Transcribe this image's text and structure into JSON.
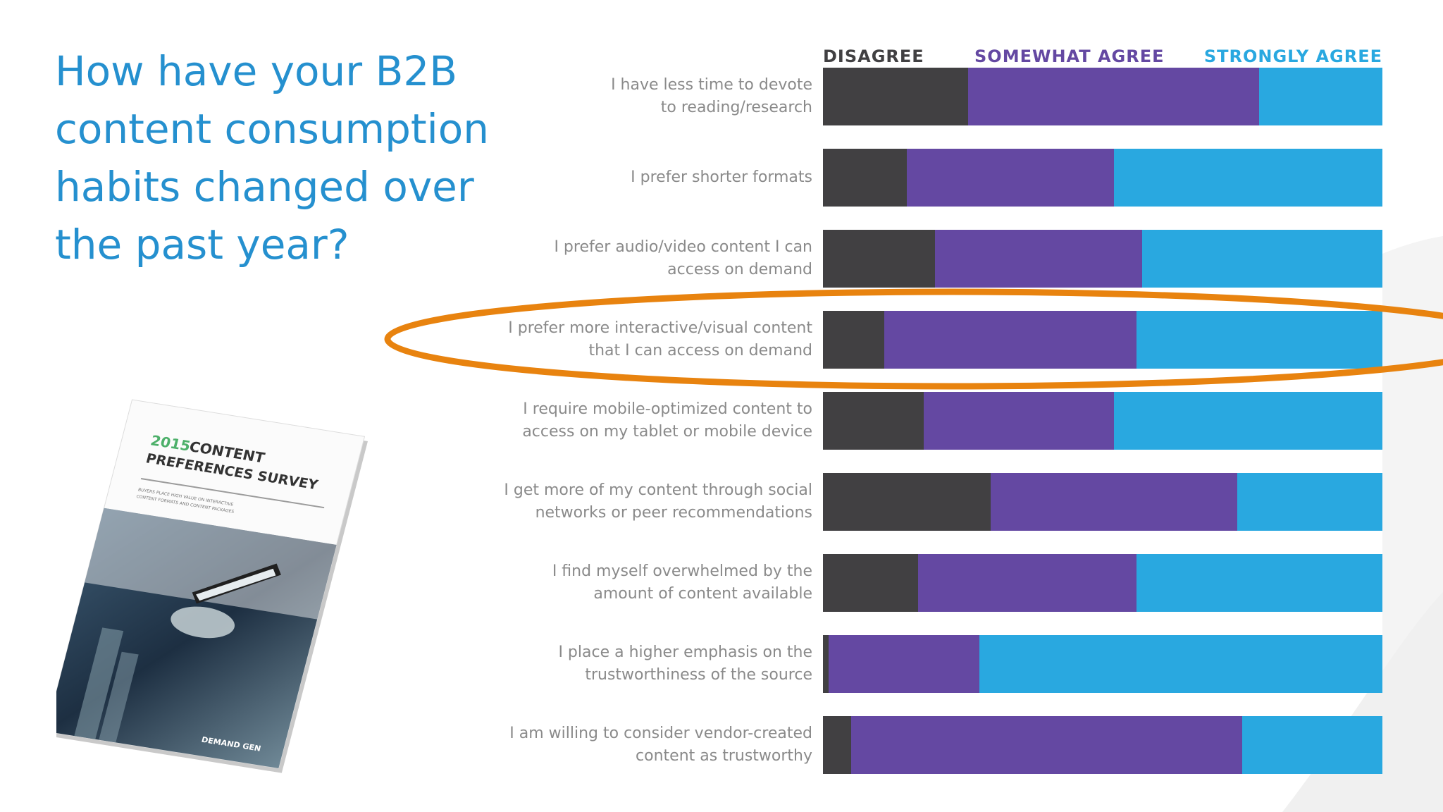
{
  "title": "How have your B2B content consumption habits changed over the past year?",
  "title_lines": [
    "How have your B2B",
    "content consumption",
    "habits changed over",
    "the past year?"
  ],
  "colors": {
    "disagree": "#414042",
    "somewhat": "#6448a2",
    "strongly": "#29a8e0",
    "title": "#2590cf",
    "highlight": "#e8830f"
  },
  "book": {
    "line1a": "2015",
    "line1b": "CONTENT",
    "line2": "PREFERENCES SURVEY",
    "sub1": "BUYERS PLACE HIGH VALUE ON INTERACTIVE",
    "sub2": "CONTENT FORMATS AND CONTENT PACKAGES",
    "brand": "DEMAND GEN"
  },
  "chart_data": {
    "type": "bar",
    "stacked": "horizontal-100%",
    "legend": [
      "DISAGREE",
      "SOMEWHAT AGREE",
      "STRONGLY AGREE"
    ],
    "legend_placement": "top",
    "categories": [
      [
        "I have less time to devote",
        "to reading/research"
      ],
      [
        "I prefer shorter formats"
      ],
      [
        "I prefer audio/video content I can",
        "access on demand"
      ],
      [
        "I prefer more interactive/visual content",
        "that I can access on demand"
      ],
      [
        "I require mobile-optimized content to",
        "access on my tablet or mobile device"
      ],
      [
        "I get more of my content through social",
        "networks or peer recommendations"
      ],
      [
        "I find myself overwhelmed by the",
        "amount of content available"
      ],
      [
        "I place a higher emphasis on the",
        "trustworthiness of the source"
      ],
      [
        "I am willing to consider vendor-created",
        "content as trustworthy"
      ]
    ],
    "series": [
      {
        "name": "DISAGREE",
        "values": [
          26,
          15,
          20,
          11,
          18,
          30,
          17,
          1,
          5
        ]
      },
      {
        "name": "SOMEWHAT AGREE",
        "values": [
          52,
          37,
          37,
          45,
          34,
          44,
          39,
          27,
          70
        ]
      },
      {
        "name": "STRONGLY AGREE",
        "values": [
          22,
          48,
          43,
          44,
          48,
          26,
          44,
          72,
          25
        ]
      }
    ],
    "highlighted_category_index": 3
  }
}
